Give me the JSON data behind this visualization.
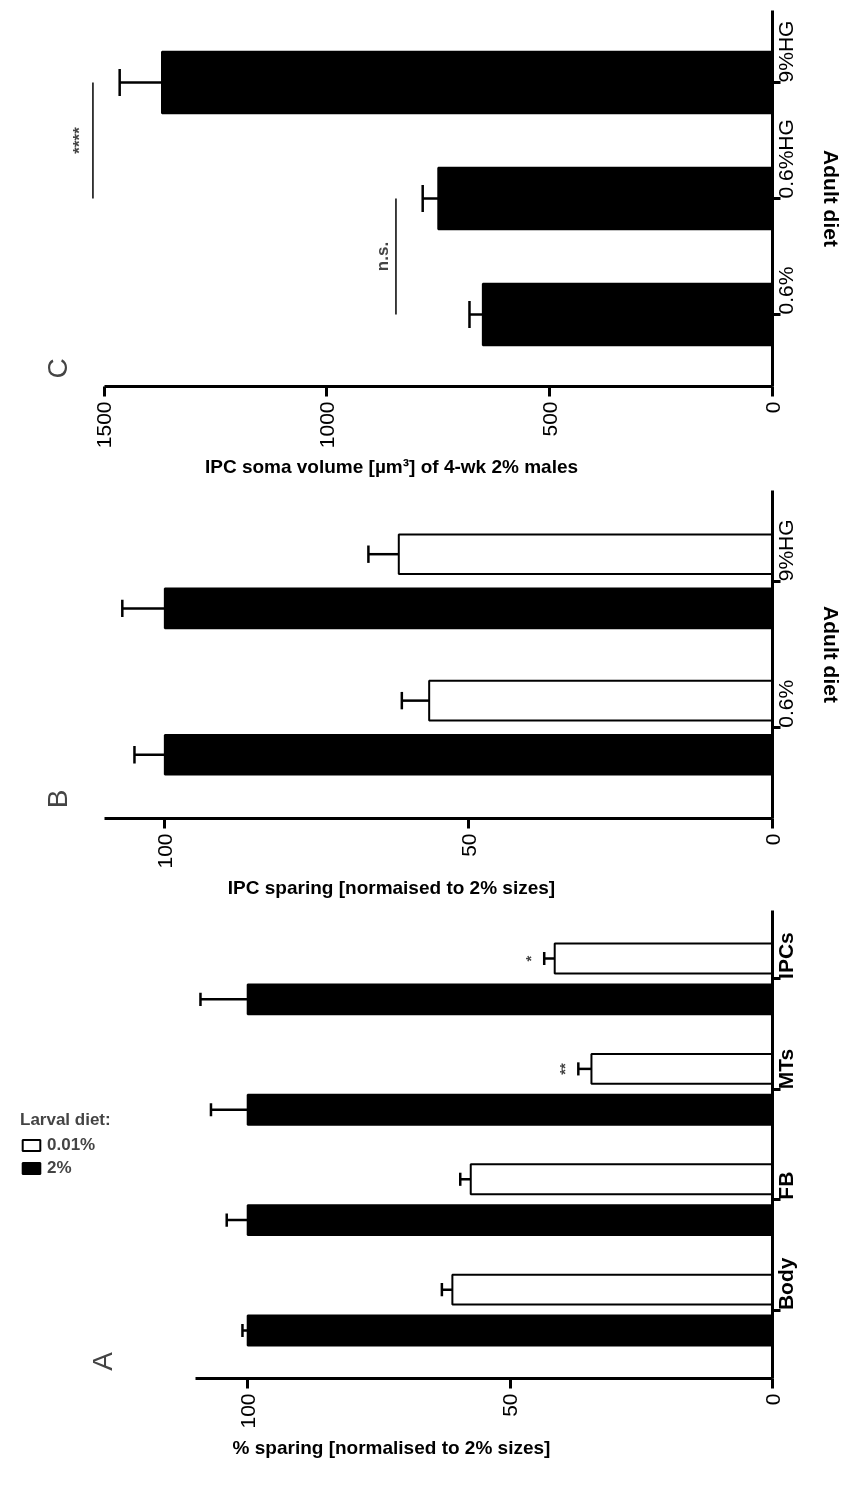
{
  "chart_data": [
    {
      "type": "bar",
      "title": "C",
      "orientation": "horizontal",
      "ylabel": "Adult diet",
      "xlabel": "IPC soma volume [µm³] of 4-wk 2% males",
      "categories": [
        "9%HG",
        "0.6%HG",
        "0.6%"
      ],
      "series": [
        {
          "color": "#000000",
          "values": [
            1370,
            750,
            650
          ],
          "errors": [
            [
              1370,
              1465
            ],
            [
              750,
              785
            ],
            [
              650,
              680
            ]
          ]
        }
      ],
      "xlim": [
        1500,
        0
      ],
      "xticks": [
        0,
        500,
        1000,
        1500
      ],
      "grid": false,
      "legend": false,
      "annotations": [
        "n.s.",
        "****"
      ]
    },
    {
      "type": "bar",
      "title": "B",
      "orientation": "horizontal",
      "ylabel": "Adult diet",
      "xlabel": "IPC sparing [normaised to 2% sizes]",
      "categories": [
        "9%HG",
        "0.6%"
      ],
      "series": [
        {
          "color": "#ffffff",
          "values": [
            61.5,
            56.5
          ],
          "errors": [
            [
              61.5,
              66.5
            ],
            [
              56.5,
              61
            ]
          ]
        },
        {
          "color": "#000000",
          "values": [
            100,
            100
          ],
          "errors": [
            [
              100,
              107
            ],
            [
              100,
              105
            ]
          ]
        }
      ],
      "xlim": [
        110,
        0
      ],
      "xticks": [
        0,
        50,
        100
      ],
      "grid": false,
      "legend": false
    },
    {
      "type": "bar",
      "title": "A",
      "orientation": "horizontal",
      "xlabel": "% sparing [normalised to 2% sizes]",
      "legend_title": "Larval diet:",
      "categories": [
        "IPCs",
        "MTs",
        "FB",
        "Body"
      ],
      "series": [
        {
          "name": "0.01%",
          "color": "#ffffff",
          "values": [
            41.5,
            34.5,
            57.5,
            61
          ],
          "errors": [
            [
              41.5,
              43.5
            ],
            [
              34.5,
              37
            ],
            [
              57.5,
              59.5
            ],
            [
              61,
              63
            ]
          ]
        },
        {
          "name": "2%",
          "color": "#000000",
          "values": [
            100,
            100,
            100,
            100
          ],
          "errors": [
            [
              100,
              109
            ],
            [
              100,
              107
            ],
            [
              100,
              104
            ],
            [
              100,
              101
            ]
          ]
        }
      ],
      "xlim": [
        110,
        0
      ],
      "xticks": [
        0,
        50,
        100
      ],
      "grid": false,
      "legend": "left",
      "annotations": [
        {
          "text": "**",
          "x": 37,
          "y": "MTs"
        },
        {
          "text": "*",
          "x": 43.5,
          "y": "IPCs"
        }
      ]
    }
  ]
}
